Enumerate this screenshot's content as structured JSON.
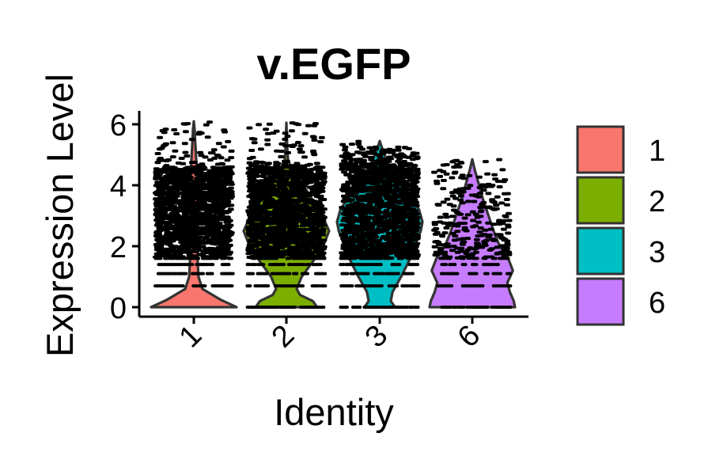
{
  "chart_data": {
    "type": "violin",
    "title": "v.EGFP",
    "xlabel": "Identity",
    "ylabel": "Expression Level",
    "ylim": [
      -0.3,
      6.4
    ],
    "yticks": [
      "0",
      "2",
      "4",
      "6"
    ],
    "categories": [
      "1",
      "2",
      "3",
      "6"
    ],
    "grid": false,
    "legend_position": "right",
    "legend": [
      {
        "label": "1",
        "color": "#F8766D"
      },
      {
        "label": "2",
        "color": "#7CAE00"
      },
      {
        "label": "3",
        "color": "#00BFC4"
      },
      {
        "label": "6",
        "color": "#C77CFF"
      }
    ],
    "series": [
      {
        "category": "1",
        "color": "#F8766D",
        "max": 6.1,
        "density": [
          [
            0,
            1.0
          ],
          [
            0.25,
            0.62
          ],
          [
            0.6,
            0.2
          ],
          [
            1.0,
            0.11
          ],
          [
            1.5,
            0.09
          ],
          [
            2.0,
            0.09
          ],
          [
            2.5,
            0.09
          ],
          [
            3.0,
            0.09
          ],
          [
            3.5,
            0.09
          ],
          [
            4.0,
            0.08
          ],
          [
            4.5,
            0.07
          ],
          [
            5.0,
            0.05
          ],
          [
            5.5,
            0.03
          ],
          [
            5.8,
            0.02
          ],
          [
            6.1,
            0.0
          ]
        ]
      },
      {
        "category": "2",
        "color": "#7CAE00",
        "max": 6.05,
        "density": [
          [
            0,
            0.72
          ],
          [
            0.2,
            0.62
          ],
          [
            0.4,
            0.32
          ],
          [
            0.6,
            0.24
          ],
          [
            1.0,
            0.36
          ],
          [
            1.5,
            0.62
          ],
          [
            2.0,
            0.86
          ],
          [
            2.5,
            1.0
          ],
          [
            3.0,
            0.84
          ],
          [
            3.5,
            0.62
          ],
          [
            4.0,
            0.4
          ],
          [
            4.5,
            0.15
          ],
          [
            4.8,
            0.04
          ],
          [
            5.2,
            0.02
          ],
          [
            6.05,
            0.0
          ]
        ]
      },
      {
        "category": "3",
        "color": "#00BFC4",
        "max": 5.45,
        "density": [
          [
            0,
            0.36
          ],
          [
            0.2,
            0.26
          ],
          [
            0.5,
            0.3
          ],
          [
            1.0,
            0.5
          ],
          [
            1.5,
            0.68
          ],
          [
            2.0,
            0.82
          ],
          [
            2.5,
            0.96
          ],
          [
            2.8,
            1.0
          ],
          [
            3.2,
            0.92
          ],
          [
            3.7,
            0.7
          ],
          [
            4.2,
            0.44
          ],
          [
            4.7,
            0.2
          ],
          [
            5.2,
            0.06
          ],
          [
            5.45,
            0.0
          ]
        ]
      },
      {
        "category": "6",
        "color": "#C77CFF",
        "max": 4.85,
        "density": [
          [
            0,
            1.0
          ],
          [
            0.2,
            0.97
          ],
          [
            0.5,
            0.88
          ],
          [
            0.8,
            0.82
          ],
          [
            1.2,
            0.95
          ],
          [
            1.6,
            0.84
          ],
          [
            2.0,
            0.64
          ],
          [
            2.5,
            0.5
          ],
          [
            3.0,
            0.38
          ],
          [
            3.5,
            0.26
          ],
          [
            4.0,
            0.16
          ],
          [
            4.5,
            0.06
          ],
          [
            4.85,
            0.0
          ]
        ]
      }
    ]
  }
}
